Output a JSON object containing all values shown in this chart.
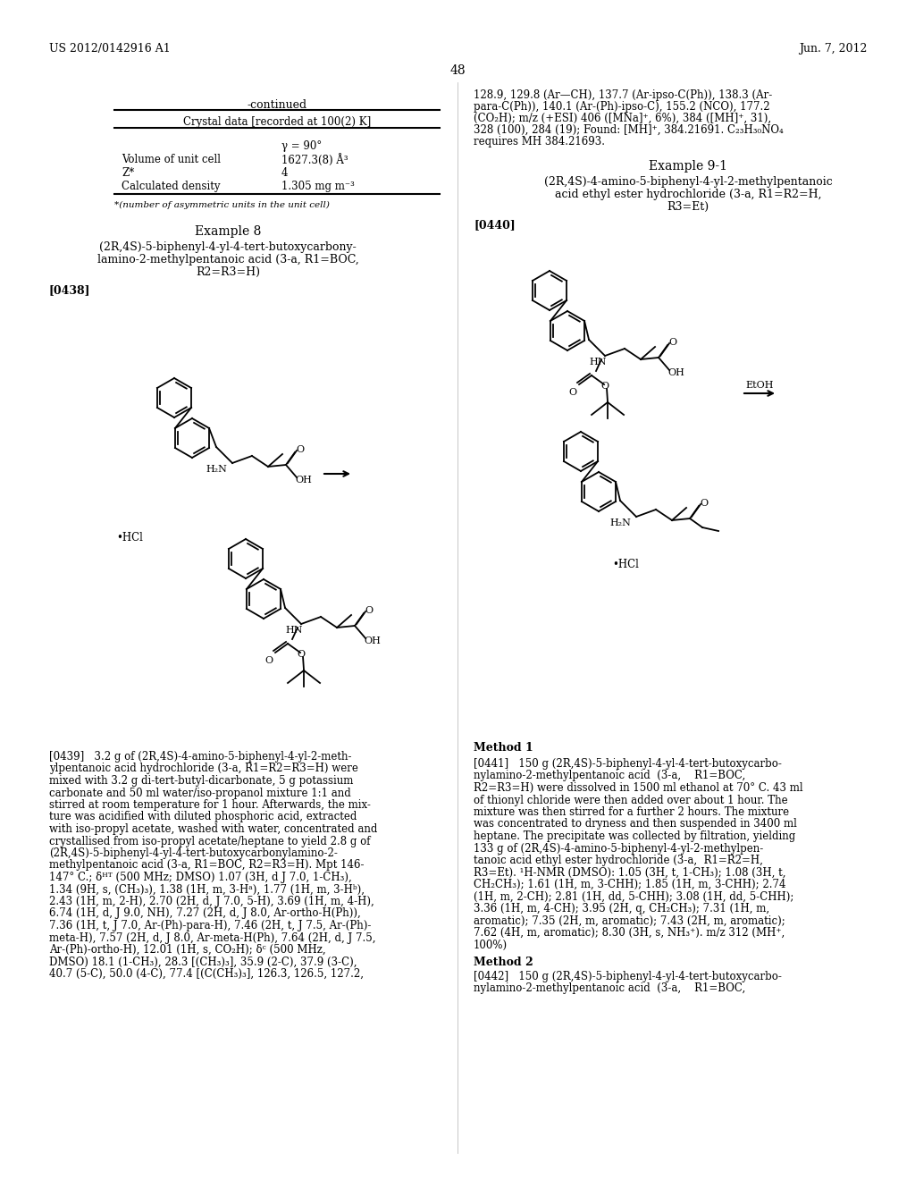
{
  "bg_color": "#ffffff",
  "header_left": "US 2012/0142916 A1",
  "header_right": "Jun. 7, 2012",
  "page_number": "48",
  "table_title": "-continued",
  "table_subtitle": "Crystal data [recorded at 100(2) K]",
  "table_rows": [
    [
      "",
      "γ = 90°"
    ],
    [
      "Volume of unit cell",
      "1627.3(8) Å³"
    ],
    [
      "Z*",
      "4"
    ],
    [
      "Calculated density",
      "1.305 mg m⁻³"
    ]
  ],
  "table_footnote": "*(number of asymmetric units in the unit cell)",
  "example8_title": "Example 8",
  "example8_subtitle": "(2R,4S)-5-biphenyl-4-yl-4-tert-butoxycarbony-\nlamino-2-methylpentanoic acid (3-a, R1=BOC,\nR2=R3=H)",
  "ref0438": "[0438]",
  "ref0439": "[0439]",
  "text0439_lines": [
    "[0439]   3.2 g of (2R,4S)-4-amino-5-biphenyl-4-yl-2-meth-",
    "ylpentanoic acid hydrochloride (3-a, R1=R2=R3=H) were",
    "mixed with 3.2 g di-tert-butyl-dicarbonate, 5 g potassium",
    "carbonate and 50 ml water/iso-propanol mixture 1:1 and",
    "stirred at room temperature for 1 hour. Afterwards, the mix-",
    "ture was acidified with diluted phosphoric acid, extracted",
    "with iso-propyl acetate, washed with water, concentrated and",
    "crystallised from iso-propyl acetate/heptane to yield 2.8 g of",
    "(2R,4S)-5-biphenyl-4-yl-4-tert-butoxycarbonylamino-2-",
    "methylpentanoic acid (3-a, R1=BOC, R2=R3=H). Mpt 146-",
    "147° C.; δᴴᵀ (500 MHz; DMSO) 1.07 (3H, d J 7.0, 1-CH₃),",
    "1.34 (9H, s, (CH₃)₃), 1.38 (1H, m, 3-Hᵃ), 1.77 (1H, m, 3-Hᵇ),",
    "2.43 (1H, m, 2-H), 2.70 (2H, d, J 7.0, 5-H), 3.69 (1H, m, 4-H),",
    "6.74 (1H, d, J 9.0, NH), 7.27 (2H, d, J 8.0, Ar-ortho-H(Ph)),",
    "7.36 (1H, t, J 7.0, Ar-(Ph)-para-H), 7.46 (2H, t, J 7.5, Ar-(Ph)-",
    "meta-H), 7.57 (2H, d, J 8.0, Ar-meta-H(Ph), 7.64 (2H, d, J 7.5,",
    "Ar-(Ph)-ortho-H), 12.01 (1H, s, CO₂H); δᶜ (500 MHz,",
    "DMSO) 18.1 (1-CH₃), 28.3 [(CH₃)₃], 35.9 (2-C), 37.9 (3-C),",
    "40.7 (5-C), 50.0 (4-C), 77.4 [(C(CH₃)₃], 126.3, 126.5, 127.2,"
  ],
  "right_col_text1_lines": [
    "128.9, 129.8 (Ar—CH), 137.7 (Ar-ipso-C(Ph)), 138.3 (Ar-",
    "para-C(Ph)), 140.1 (Ar-(Ph)-ipso-C), 155.2 (NCO), 177.2",
    "(CO₂H); m/z (+ESI) 406 ([MNa]⁺, 6%), 384 ([MH]⁺, 31),",
    "328 (100), 284 (19); Found: [MH]⁺, 384.21691. C₂₃H₃₀NO₄",
    "requires MH 384.21693."
  ],
  "example91_title": "Example 9-1",
  "example91_subtitle": "(2R,4S)-4-amino-5-biphenyl-4-yl-2-methylpentanoic\nacid ethyl ester hydrochloride (3-a, R1=R2=H,\nR3=Et)",
  "ref0440": "[0440]",
  "ref0441": "[0441]",
  "text0441_lines": [
    "[0441]   150 g (2R,4S)-5-biphenyl-4-yl-4-tert-butoxycarbo-",
    "nylamino-2-methylpentanoic acid  (3-a,    R1=BOC,",
    "R2=R3=H) were dissolved in 1500 ml ethanol at 70° C. 43 ml",
    "of thionyl chloride were then added over about 1 hour. The",
    "mixture was then stirred for a further 2 hours. The mixture",
    "was concentrated to dryness and then suspended in 3400 ml",
    "heptane. The precipitate was collected by filtration, yielding",
    "133 g of (2R,4S)-4-amino-5-biphenyl-4-yl-2-methylpen-",
    "tanoic acid ethyl ester hydrochloride (3-a,  R1=R2=H,",
    "R3=Et). ¹H-NMR (DMSO): 1.05 (3H, t, 1-CH₃); 1.08 (3H, t,",
    "CH₂CH₃); 1.61 (1H, m, 3-CHH); 1.85 (1H, m, 3-CHH); 2.74",
    "(1H, m, 2-CH); 2.81 (1H, dd, 5-CHH); 3.08 (1H, dd, 5-CHH);",
    "3.36 (1H, m, 4-CH); 3.95 (2H, q, CH₂CH₃); 7.31 (1H, m,",
    "aromatic); 7.35 (2H, m, aromatic); 7.43 (2H, m, aromatic);",
    "7.62 (4H, m, aromatic); 8.30 (3H, s, NH₃⁺). m/z 312 (MH⁺,",
    "100%)"
  ],
  "method1_title": "Method 1",
  "method2_title": "Method 2",
  "ref0442": "[0442]",
  "text0442_lines": [
    "[0442]   150 g (2R,4S)-5-biphenyl-4-yl-4-tert-butoxycarbo-",
    "nylamino-2-methylpentanoic acid  (3-a,    R1=BOC,"
  ],
  "etoh_label": "EtOH"
}
